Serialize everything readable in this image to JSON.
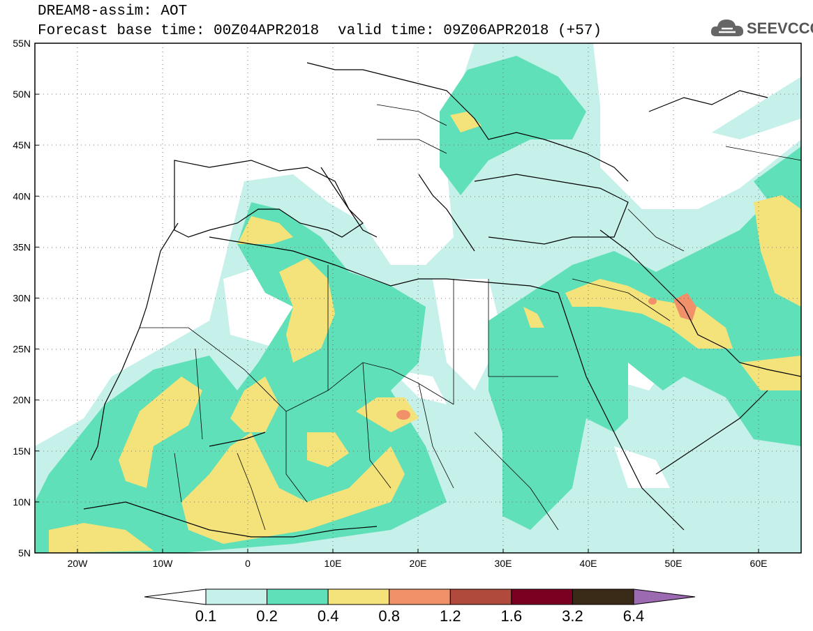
{
  "header": {
    "line1": "DREAM8-assim: AOT",
    "base_label": "Forecast base time: 00Z04APR2018",
    "valid_label": "valid time: 09Z06APR2018 (+57)",
    "logo_text": "SEEVCCC",
    "logo_icon": "cloud-icon"
  },
  "map": {
    "lon_range": [
      -25,
      65
    ],
    "lat_range": [
      5,
      55
    ],
    "lat_ticks": [
      "55N",
      "50N",
      "45N",
      "40N",
      "35N",
      "30N",
      "25N",
      "20N",
      "15N",
      "10N",
      "5N"
    ],
    "lon_ticks": [
      "20W",
      "10W",
      "0",
      "10E",
      "20E",
      "30E",
      "40E",
      "50E",
      "60E"
    ]
  },
  "colorbar": {
    "bins": [
      {
        "color": "#c6f0ea"
      },
      {
        "color": "#5fe0b8"
      },
      {
        "color": "#f4e27a"
      },
      {
        "color": "#f0916a"
      },
      {
        "color": "#b04a3c"
      },
      {
        "color": "#7a0020"
      },
      {
        "color": "#3a2a18"
      }
    ],
    "under_color": "#ffffff",
    "over_color": "#9b6ab0",
    "labels": [
      "0.1",
      "0.2",
      "0.4",
      "0.8",
      "1.2",
      "1.6",
      "3.2",
      "6.4"
    ]
  }
}
